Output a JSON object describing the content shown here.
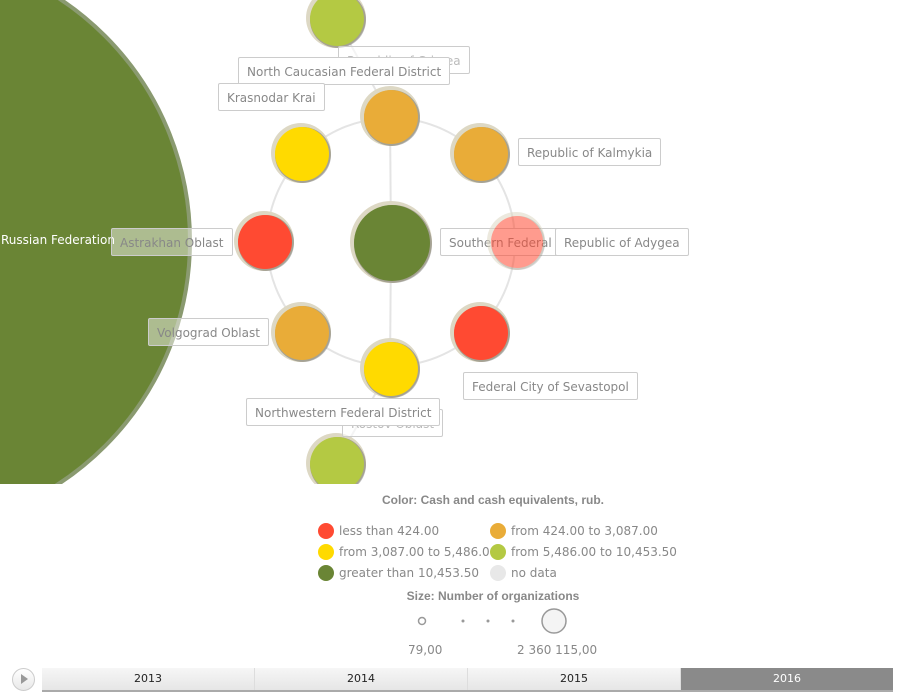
{
  "chart_data": {
    "type": "bubble",
    "root": {
      "name": "Russian Federation",
      "color_class": "greater than 10,453.50"
    },
    "nodes": [
      {
        "name": "Southern Federal District",
        "color_class": "greater than 10,453.50"
      },
      {
        "name": "North Caucasian Federal District",
        "color_class": "from 424.00 to 3,087.00"
      },
      {
        "name": "Northwestern Federal District",
        "color_class": "from 5,486.00 to 10,453.50"
      },
      {
        "name": "Republic of Crimea",
        "color_class": "from 5,486.00 to 10,453.50"
      },
      {
        "name": "Krasnodar Krai",
        "color_class": "from 3,087.00 to 5,486.00"
      },
      {
        "name": "Republic of Kalmykia",
        "color_class": "from 424.00 to 3,087.00"
      },
      {
        "name": "Astrakhan Oblast",
        "color_class": "less than 424.00"
      },
      {
        "name": "Republic of Adygea",
        "color_class": "less than 424.00"
      },
      {
        "name": "Volgograd Oblast",
        "color_class": "from 424.00 to 3,087.00"
      },
      {
        "name": "Federal City of Sevastopol",
        "color_class": "less than 424.00"
      },
      {
        "name": "Rostov Oblast",
        "color_class": "from 3,087.00 to 5,486.00"
      }
    ],
    "color_legend": {
      "title": "Color: Cash and cash equivalents, rub.",
      "items": [
        {
          "label": "less than 424.00",
          "color": "#ff4a32"
        },
        {
          "label": "from 424.00 to 3,087.00",
          "color": "#e9ac38"
        },
        {
          "label": "from 3,087.00 to 5,486.00",
          "color": "#ffda00"
        },
        {
          "label": "from 5,486.00 to 10,453.50",
          "color": "#b4c943"
        },
        {
          "label": "greater than 10,453.50",
          "color": "#6a8535"
        },
        {
          "label": "no data",
          "color": "#e8e8e8"
        }
      ]
    },
    "size_legend": {
      "title": "Size: Number of organizations",
      "min": "79,00",
      "max": "2 360 115,00"
    }
  },
  "timeline": {
    "years": [
      "2013",
      "2014",
      "2015",
      "2016"
    ],
    "selected": "2016"
  }
}
